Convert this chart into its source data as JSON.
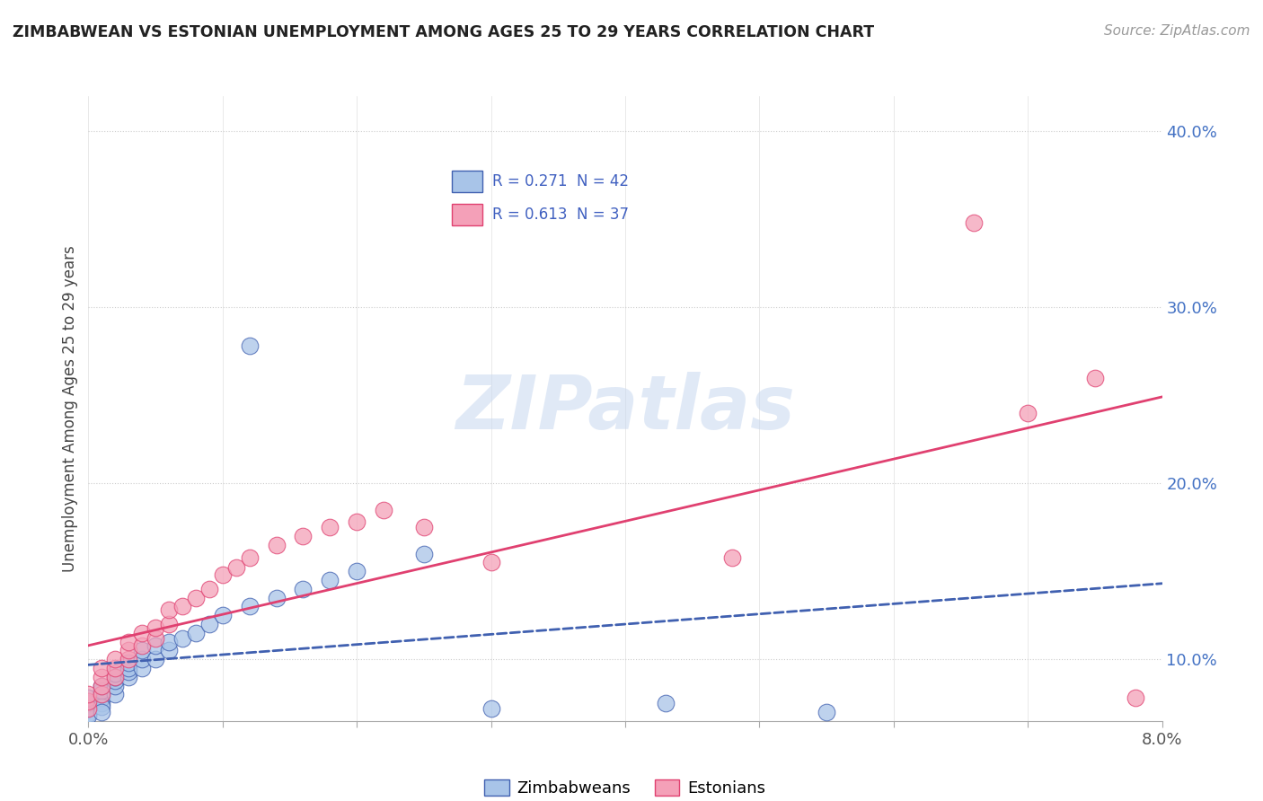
{
  "title": "ZIMBABWEAN VS ESTONIAN UNEMPLOYMENT AMONG AGES 25 TO 29 YEARS CORRELATION CHART",
  "source": "Source: ZipAtlas.com",
  "ylabel": "Unemployment Among Ages 25 to 29 years",
  "xlim": [
    0.0,
    0.08
  ],
  "ylim": [
    0.065,
    0.42
  ],
  "legend_text": [
    "R = 0.271  N = 42",
    "R = 0.613  N = 37"
  ],
  "color_blue": "#a8c4e8",
  "color_pink": "#f4a0b8",
  "color_blue_line": "#4060b0",
  "color_pink_line": "#e04070",
  "color_text_blue": "#4060c0",
  "watermark": "ZIPatlas",
  "zim_x": [
    0.0,
    0.0,
    0.0,
    0.0,
    0.0,
    0.001,
    0.001,
    0.001,
    0.001,
    0.001,
    0.001,
    0.001,
    0.002,
    0.002,
    0.002,
    0.002,
    0.002,
    0.003,
    0.003,
    0.003,
    0.003,
    0.004,
    0.004,
    0.004,
    0.005,
    0.005,
    0.006,
    0.006,
    0.007,
    0.008,
    0.009,
    0.01,
    0.012,
    0.012,
    0.014,
    0.016,
    0.018,
    0.02,
    0.025,
    0.03,
    0.043,
    0.055
  ],
  "zim_y": [
    0.069,
    0.072,
    0.075,
    0.078,
    0.068,
    0.075,
    0.078,
    0.08,
    0.082,
    0.085,
    0.073,
    0.07,
    0.08,
    0.085,
    0.088,
    0.09,
    0.092,
    0.09,
    0.093,
    0.095,
    0.098,
    0.095,
    0.1,
    0.105,
    0.1,
    0.108,
    0.105,
    0.11,
    0.112,
    0.115,
    0.12,
    0.125,
    0.13,
    0.278,
    0.135,
    0.14,
    0.145,
    0.15,
    0.16,
    0.072,
    0.075,
    0.07
  ],
  "est_x": [
    0.0,
    0.0,
    0.0,
    0.001,
    0.001,
    0.001,
    0.001,
    0.002,
    0.002,
    0.002,
    0.003,
    0.003,
    0.003,
    0.004,
    0.004,
    0.005,
    0.005,
    0.006,
    0.006,
    0.007,
    0.008,
    0.009,
    0.01,
    0.011,
    0.012,
    0.014,
    0.016,
    0.018,
    0.02,
    0.022,
    0.025,
    0.03,
    0.048,
    0.066,
    0.07,
    0.075,
    0.078
  ],
  "est_y": [
    0.072,
    0.076,
    0.08,
    0.08,
    0.085,
    0.09,
    0.095,
    0.09,
    0.095,
    0.1,
    0.1,
    0.105,
    0.11,
    0.108,
    0.115,
    0.112,
    0.118,
    0.12,
    0.128,
    0.13,
    0.135,
    0.14,
    0.148,
    0.152,
    0.158,
    0.165,
    0.17,
    0.175,
    0.178,
    0.185,
    0.175,
    0.155,
    0.158,
    0.348,
    0.24,
    0.26,
    0.078
  ]
}
